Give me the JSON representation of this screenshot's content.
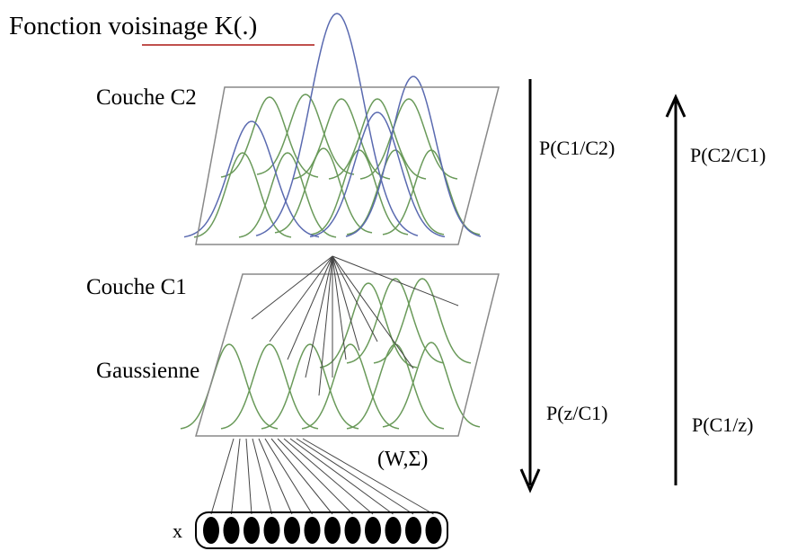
{
  "title": "Fonction voisinage K(.)",
  "layers": {
    "top": "Couche C2",
    "bottom": "Couche C1",
    "gaussian": "Gaussienne"
  },
  "arrows": {
    "down_top": "P(C1/C2)",
    "up_top": "P(C2/C1)",
    "down_bottom": "P(z/C1)",
    "up_bottom": "P(C1/z)"
  },
  "params": "(W,Σ)",
  "input": "x"
}
